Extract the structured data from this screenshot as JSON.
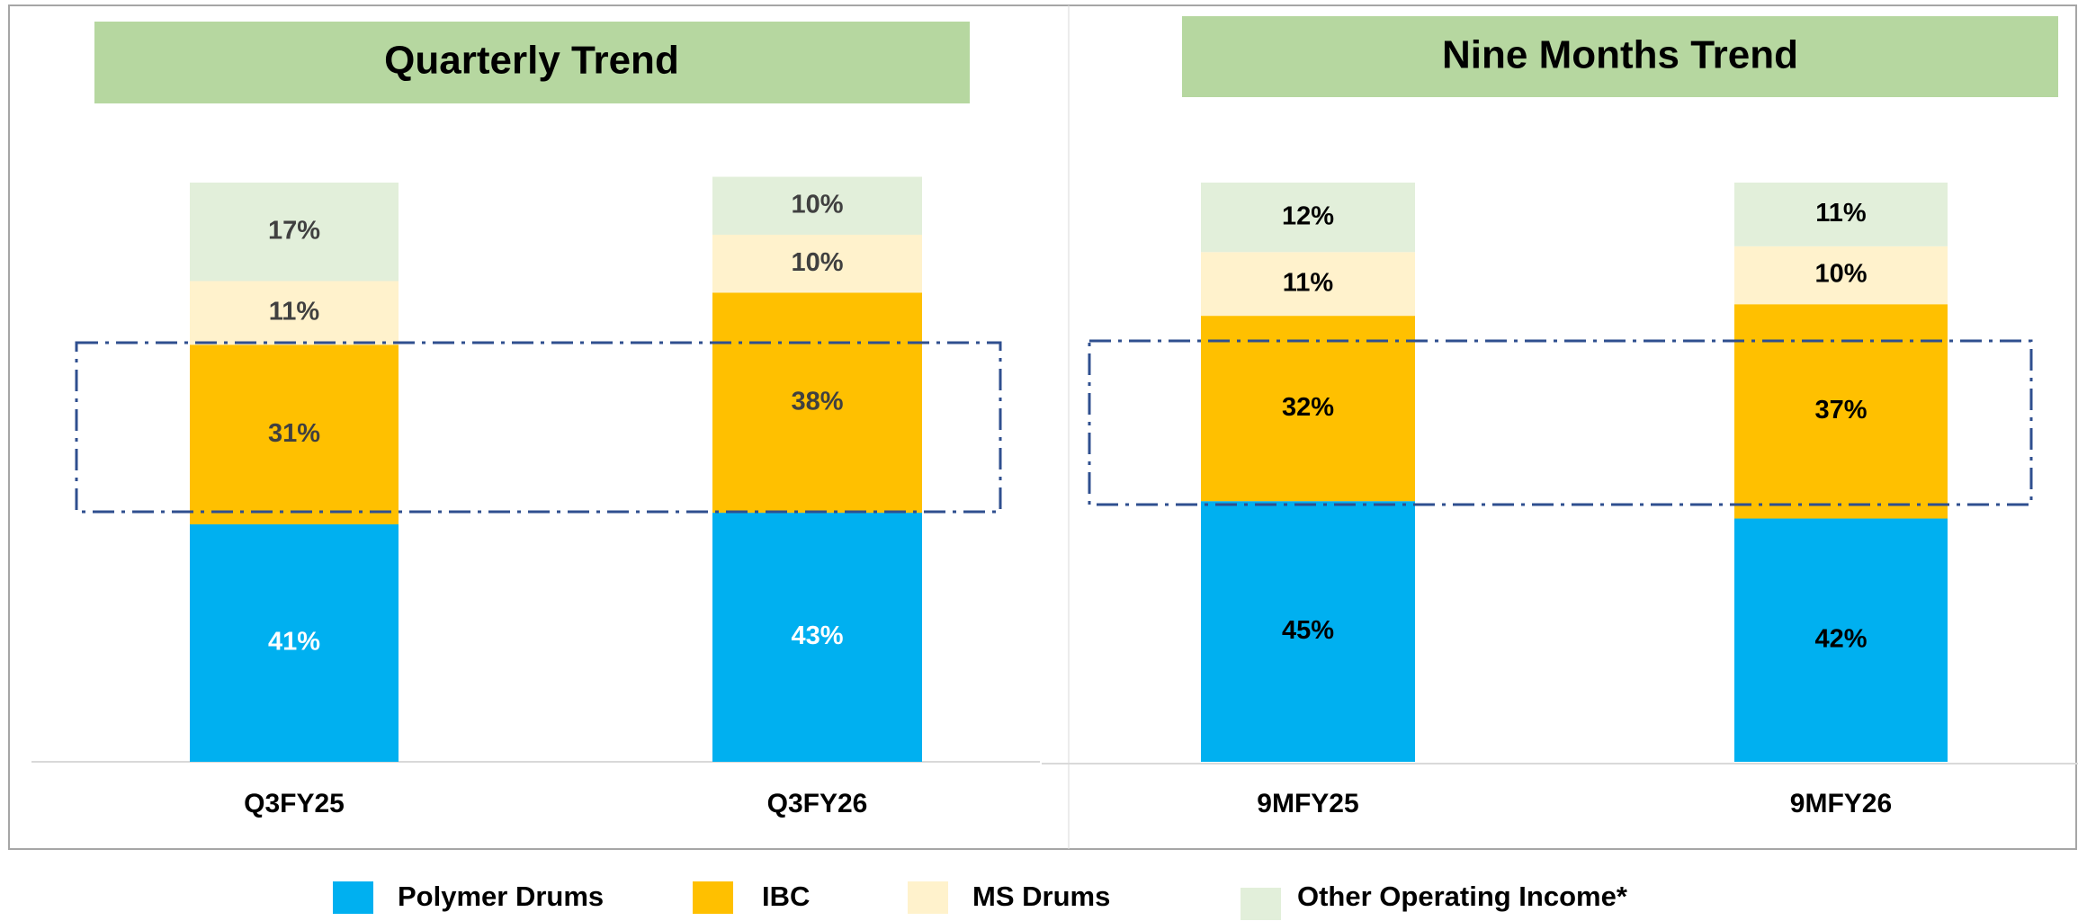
{
  "chart_data": {
    "type": "stacked_bar",
    "panel_titles": [
      "Quarterly  Trend",
      "Nine Months Trend"
    ],
    "categories": [
      "Q3FY25",
      "Q3FY26",
      "9MFY25",
      "9MFY26"
    ],
    "ylim": [
      0,
      100
    ],
    "series": [
      {
        "name": "Polymer Drums",
        "color": "#00b0f0",
        "values": [
          41,
          43,
          45,
          42
        ],
        "value_labels": [
          "41%",
          "43%",
          "45%",
          "42%"
        ]
      },
      {
        "name": "IBC",
        "color": "#ffc000",
        "values": [
          31,
          38,
          32,
          37
        ],
        "value_labels": [
          "31%",
          "38%",
          "32%",
          "37%"
        ]
      },
      {
        "name": "MS Drums",
        "color": "#fff2cc",
        "values": [
          11,
          10,
          11,
          10
        ],
        "value_labels": [
          "11%",
          "10%",
          "11%",
          "10%"
        ]
      },
      {
        "name": "Other Operating Income*",
        "color": "#e2efda",
        "values": [
          17,
          10,
          12,
          11
        ],
        "value_labels": [
          "17%",
          "10%",
          "12%",
          "11%"
        ]
      }
    ]
  }
}
